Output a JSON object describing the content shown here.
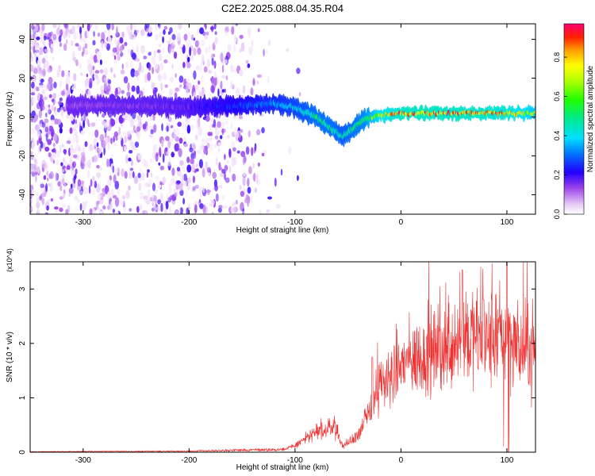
{
  "title": "C2E2.2025.088.04.35.R04",
  "chart_data": [
    {
      "type": "heatmap",
      "xlabel": "Height of straight line (km)",
      "ylabel": "Frequency (Hz)",
      "xlim": [
        -350,
        127
      ],
      "ylim": [
        -50,
        48
      ],
      "xticks": [
        -300,
        -200,
        -100,
        0,
        100
      ],
      "yticks": [
        -40,
        -20,
        0,
        20,
        40
      ],
      "colorbar": {
        "label": "Normalized spectral amplitude",
        "range": [
          0,
          0.97
        ],
        "ticks": [
          0.0,
          0.2,
          0.4,
          0.6,
          0.8
        ]
      },
      "ridge_frequency": {
        "x": [
          -310,
          -250,
          -200,
          -150,
          -120,
          -100,
          -80,
          -65,
          -55,
          -45,
          -35,
          -20,
          0,
          50,
          100,
          125
        ],
        "y": [
          6,
          6,
          5,
          6,
          7,
          5,
          0,
          -6,
          -10,
          -6,
          -1,
          1,
          2,
          2,
          2,
          2
        ]
      },
      "ridge_amplitude": {
        "x": [
          -310,
          -250,
          -200,
          -150,
          -120,
          -100,
          -80,
          -65,
          -55,
          -45,
          -35,
          -20,
          0,
          50,
          100,
          125
        ],
        "y": [
          0.15,
          0.17,
          0.2,
          0.3,
          0.38,
          0.45,
          0.55,
          0.55,
          0.5,
          0.55,
          0.6,
          0.8,
          0.95,
          0.95,
          0.9,
          0.75
        ]
      },
      "noise_extent_km": [
        -350,
        -130
      ]
    },
    {
      "type": "line",
      "xlabel": "Height of straight line (km)",
      "ylabel": "SNR (10 * v/v)",
      "y_multiplier": "(x10^4)",
      "xlim": [
        -350,
        127
      ],
      "ylim": [
        0,
        3.5
      ],
      "xticks": [
        -300,
        -200,
        -100,
        0,
        100
      ],
      "yticks": [
        0,
        1,
        2,
        3
      ],
      "series": [
        {
          "name": "SNR",
          "color": "#ee3030",
          "envelope_x": [
            -350,
            -200,
            -150,
            -110,
            -100,
            -85,
            -70,
            -62,
            -55,
            -48,
            -40,
            -30,
            -20,
            0,
            20,
            40,
            60,
            80,
            100,
            110,
            127
          ],
          "envelope_y": [
            0.01,
            0.02,
            0.04,
            0.05,
            0.12,
            0.32,
            0.42,
            0.48,
            0.1,
            0.2,
            0.35,
            0.7,
            1.2,
            1.6,
            1.75,
            1.9,
            2.15,
            2.0,
            2.2,
            1.85,
            1.9
          ],
          "peaks": [
            {
              "x": 58,
              "y": 3.35
            },
            {
              "x": 100,
              "y": 3.5
            },
            {
              "x": 78,
              "y": 2.8
            },
            {
              "x": -27,
              "y": 1.75
            }
          ]
        }
      ]
    }
  ]
}
